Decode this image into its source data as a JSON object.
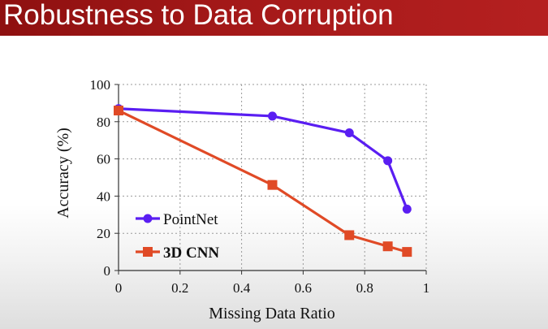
{
  "slide": {
    "title": "Robustness to Data Corruption"
  },
  "colors": {
    "title_bar": "#a51919",
    "pointnet": "#5a1ef2",
    "cnn3d": "#e04a26",
    "grid": "#9a9a9a"
  },
  "chart_data": {
    "type": "line",
    "title": "",
    "xlabel": "Missing Data Ratio",
    "ylabel": "Accuracy (%)",
    "xlim": [
      0,
      1
    ],
    "ylim": [
      0,
      100
    ],
    "xticks": [
      0,
      0.2,
      0.4,
      0.6,
      0.8,
      1
    ],
    "xtick_labels": [
      "0",
      "0.2",
      "0.4",
      "0.6",
      "0.8",
      "1"
    ],
    "yticks": [
      0,
      20,
      40,
      60,
      80,
      100
    ],
    "ytick_labels": [
      "0",
      "20",
      "40",
      "60",
      "80",
      "100"
    ],
    "grid": true,
    "legend_position": "bottom-left",
    "series": [
      {
        "name": "PointNet",
        "marker": "circle",
        "color": "#5a1ef2",
        "x": [
          0,
          0.5,
          0.75,
          0.875,
          0.9375
        ],
        "y": [
          87,
          83,
          74,
          59,
          33
        ]
      },
      {
        "name": "3D CNN",
        "marker": "square",
        "color": "#e04a26",
        "x": [
          0,
          0.5,
          0.75,
          0.875,
          0.9375
        ],
        "y": [
          86,
          46,
          19,
          13,
          10
        ]
      }
    ]
  }
}
